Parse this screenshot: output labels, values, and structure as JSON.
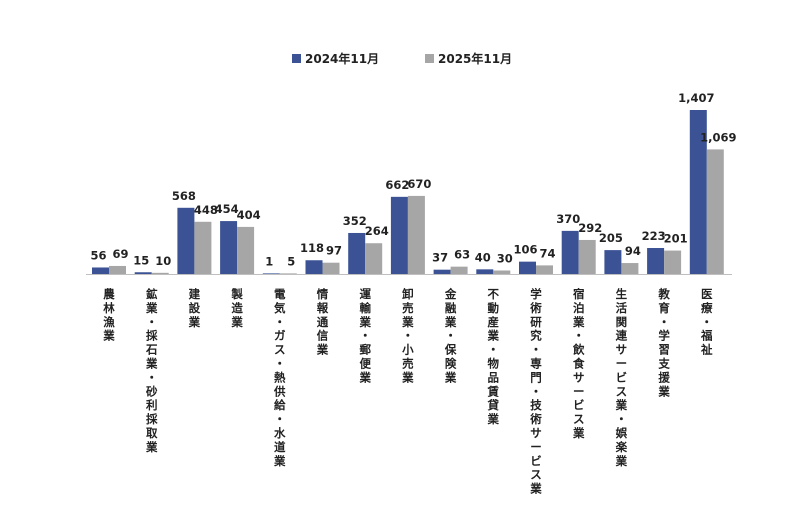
{
  "chart_data": {
    "type": "bar",
    "title": "",
    "xlabel": "",
    "ylabel": "",
    "ylim": [
      0,
      1550
    ],
    "grid": false,
    "legend_position": "top-center",
    "categories": [
      "農林漁業",
      "鉱業・採石業・砂利採取業",
      "建設業",
      "製造業",
      "電気・ガス・熱供給・水道業",
      "情報通信業",
      "運輸業・郵便業",
      "卸売業・小売業",
      "金融業・保険業",
      "不動産業・物品賃貸業",
      "学術研究・専門・技術サービス業",
      "宿泊業・飲食サービス業",
      "生活関連サービス業・娯楽業",
      "教育・学習支援業",
      "医療・福祉"
    ],
    "series": [
      {
        "name": "2024年11月",
        "color": "#3b5395",
        "values": [
          56,
          15,
          568,
          454,
          1,
          118,
          352,
          662,
          37,
          40,
          106,
          370,
          205,
          223,
          1407
        ],
        "labels": [
          "56",
          "15",
          "568",
          "454",
          "1",
          "118",
          "352",
          "662",
          "37",
          "40",
          "106",
          "370",
          "205",
          "223",
          "1,407"
        ]
      },
      {
        "name": "2025年11月",
        "color": "#a6a6a6",
        "values": [
          69,
          10,
          448,
          404,
          5,
          97,
          264,
          670,
          63,
          30,
          74,
          292,
          94,
          201,
          1069
        ],
        "labels": [
          "69",
          "10",
          "448",
          "404",
          "5",
          "97",
          "264",
          "670",
          "63",
          "30",
          "74",
          "292",
          "94",
          "201",
          "1,069"
        ]
      }
    ]
  }
}
